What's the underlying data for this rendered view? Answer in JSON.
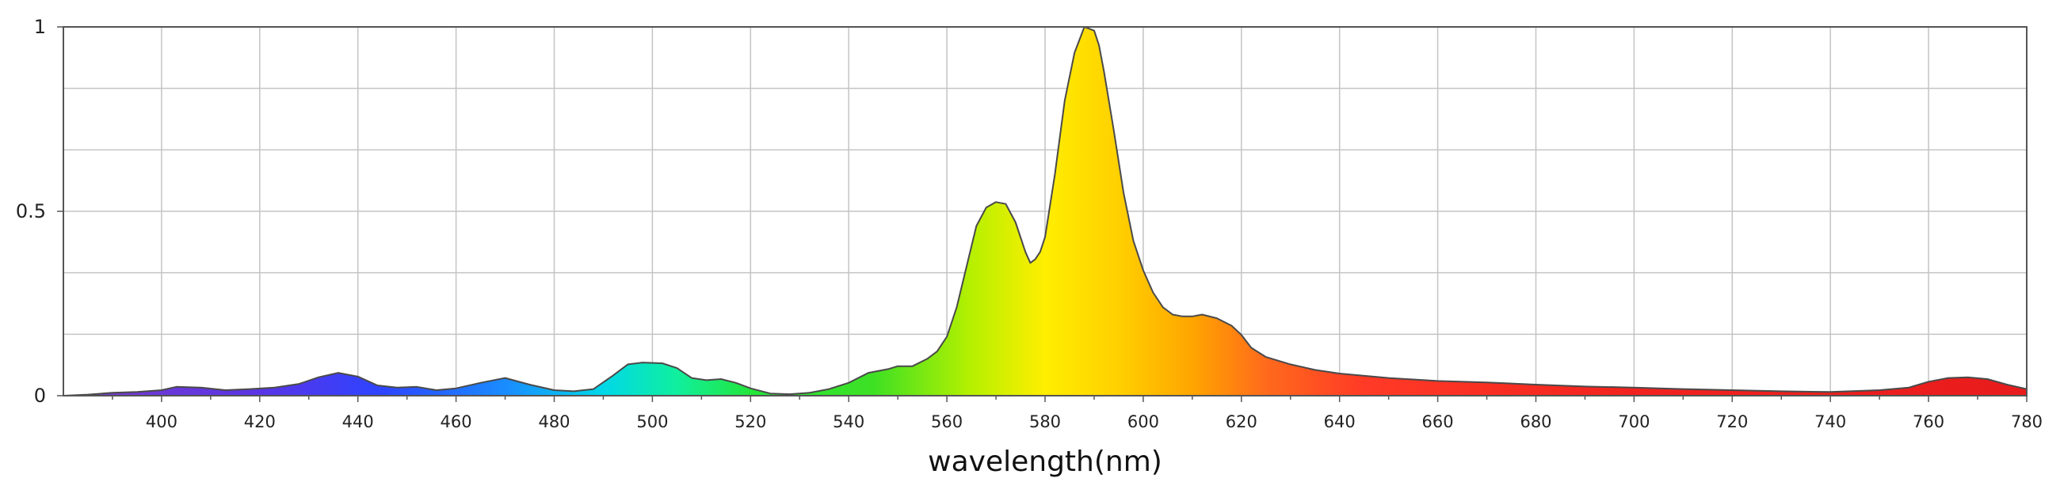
{
  "chart_data": {
    "type": "area",
    "title": "",
    "xlabel": "wavelength(nm)",
    "ylabel": "",
    "xlim": [
      380,
      780
    ],
    "ylim": [
      0,
      1
    ],
    "grid": true,
    "x_ticks": [
      400,
      420,
      440,
      460,
      480,
      500,
      520,
      540,
      560,
      580,
      600,
      620,
      640,
      660,
      680,
      700,
      720,
      740,
      760,
      780
    ],
    "x_tick_labels": [
      "400",
      "420",
      "440",
      "460",
      "480",
      "500",
      "520",
      "540",
      "560",
      "580",
      "600",
      "620",
      "640",
      "660",
      "680",
      "700",
      "720",
      "740",
      "760",
      "780"
    ],
    "y_ticks": [
      0,
      0.5,
      1
    ],
    "y_tick_labels": [
      "0",
      "0.5",
      "1"
    ],
    "fill": "visible-spectrum gradient",
    "series": [
      {
        "x": [
          380,
          385,
          390,
          395,
          400,
          403,
          408,
          413,
          418,
          423,
          428,
          432,
          436,
          440,
          444,
          448,
          452,
          456,
          460,
          465,
          470,
          475,
          480,
          484,
          488,
          492,
          495,
          498,
          502,
          505,
          508,
          511,
          514,
          517,
          520,
          524,
          528,
          532,
          536,
          540,
          544,
          548,
          550,
          553,
          556,
          558,
          560,
          562,
          564,
          566,
          568,
          570,
          572,
          574,
          576,
          577,
          578,
          579,
          580,
          582,
          584,
          586,
          588,
          590,
          591,
          592,
          594,
          596,
          598,
          600,
          602,
          604,
          606,
          608,
          610,
          612,
          615,
          618,
          620,
          622,
          625,
          630,
          635,
          640,
          650,
          660,
          670,
          680,
          690,
          700,
          710,
          720,
          730,
          740,
          750,
          756,
          760,
          764,
          768,
          772,
          776,
          780
        ],
        "y": [
          0.0,
          0.003,
          0.008,
          0.01,
          0.015,
          0.024,
          0.022,
          0.015,
          0.018,
          0.022,
          0.032,
          0.05,
          0.062,
          0.052,
          0.028,
          0.022,
          0.024,
          0.015,
          0.02,
          0.035,
          0.048,
          0.03,
          0.015,
          0.012,
          0.018,
          0.055,
          0.085,
          0.09,
          0.088,
          0.075,
          0.048,
          0.042,
          0.045,
          0.035,
          0.02,
          0.006,
          0.004,
          0.008,
          0.018,
          0.035,
          0.062,
          0.072,
          0.08,
          0.08,
          0.1,
          0.12,
          0.16,
          0.24,
          0.35,
          0.46,
          0.51,
          0.525,
          0.52,
          0.47,
          0.39,
          0.36,
          0.37,
          0.39,
          0.43,
          0.6,
          0.8,
          0.93,
          1.0,
          0.99,
          0.95,
          0.88,
          0.72,
          0.55,
          0.42,
          0.34,
          0.28,
          0.24,
          0.22,
          0.215,
          0.215,
          0.22,
          0.21,
          0.19,
          0.165,
          0.13,
          0.105,
          0.085,
          0.07,
          0.06,
          0.048,
          0.04,
          0.036,
          0.03,
          0.025,
          0.022,
          0.018,
          0.015,
          0.012,
          0.01,
          0.015,
          0.022,
          0.038,
          0.048,
          0.05,
          0.045,
          0.03,
          0.018
        ]
      }
    ]
  }
}
